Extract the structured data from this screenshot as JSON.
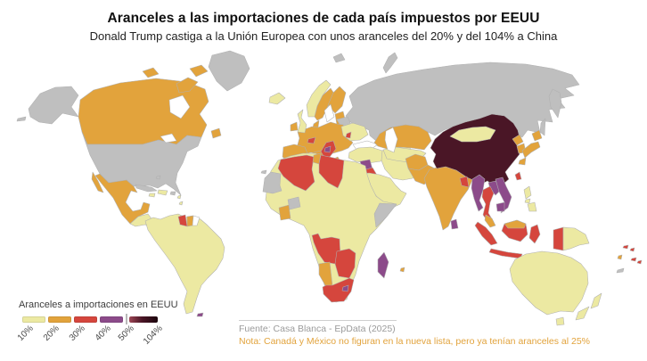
{
  "header": {
    "title": "Aranceles a las importaciones de cada país impuestos por EEUU",
    "subtitle": "Donald Trump castiga a la Unión Europea con unos aranceles del 20% y del 104% a China"
  },
  "chart_data": {
    "type": "choropleth",
    "legend": {
      "title": "Aranceles a importaciones en EEUU",
      "tick_labels": [
        "10%",
        "20%",
        "30%",
        "40%",
        "50%",
        "104%"
      ],
      "bucket_order": [
        "b10",
        "b20",
        "b30",
        "b40"
      ],
      "gradient": [
        "#9d4655",
        "#4a1626",
        "#1c060d"
      ],
      "position": "bottom-left"
    },
    "colors": {
      "b10": "#ece9a2",
      "b20": "#e2a33c",
      "b30": "#d5463d",
      "b40": "#8c4b8a",
      "b104": "#4a1626",
      "nodata": "#bfbfbf",
      "none": "#ffffff",
      "sea": "#ffffff"
    },
    "regions": {
      "russia": "nodata",
      "kamchatka": "nodata",
      "sakhalin": "nodata",
      "svalbard": "nodata",
      "novaya-zemlya": "nodata",
      "greenland": "nodata",
      "alaska": "nodata",
      "aleutians": "nodata",
      "usa": "nodata",
      "belarus": "nodata",
      "somalia": "nodata",
      "western-sahara": "nodata",
      "burkina": "nodata",
      "cuba": "nodata",
      "bahamas": "nodata",
      "puerto-rico": "nodata",
      "new-caledonia": "nodata",
      "canada": "b20",
      "newfoundland": "b20",
      "mexico": "b20",
      "central-america": "b10",
      "hispaniola": "b10",
      "jamaica": "b10",
      "lesser-antilles": "b10",
      "south-america": "b10",
      "guyana": "b30",
      "suriname": "b20",
      "french-guiana": "none",
      "falklands": "b40",
      "iceland": "b10",
      "uk": "b10",
      "ireland": "b20",
      "norway": "b10",
      "sweden": "b20",
      "finland": "b20",
      "baltics": "b20",
      "denmark": "b20",
      "europe-mainland": "b20",
      "iberia": "b20",
      "italy": "b20",
      "switzerland": "b30",
      "balkans": "b30",
      "bosnia": "b40",
      "greece": "b20",
      "ukraine": "b10",
      "moldova": "b30",
      "baltic-sea": "sea",
      "black-sea": "sea",
      "caspian-sea": "sea",
      "hudson-bay": "sea",
      "great-lakes": "sea",
      "turkey": "b10",
      "cyprus": "b10",
      "syria": "b40",
      "iraq": "b30",
      "jordan": "b20",
      "arabia": "b10",
      "iran": "b10",
      "caucasus": "b20",
      "kazakhstan": "b20",
      "central-asia": "b10",
      "afghanistan": "b20",
      "pakistan": "b20",
      "india": "b20",
      "bangladesh": "b30",
      "sri-lanka": "b40",
      "china": "b104",
      "mongolia": "b10",
      "north-korea": "b20",
      "south-korea": "b20",
      "japan": "b20",
      "taiwan": "b30",
      "myanmar": "b40",
      "thailand": "b30",
      "laos": "b40",
      "vietnam": "b40",
      "cambodia": "b40",
      "malaysia": "b20",
      "malaysia-borneo": "b20",
      "indonesia": "b30",
      "papua-new-guinea": "b10",
      "philippines": "b10",
      "africa": "b10",
      "algeria": "b30",
      "tunisia": "b20",
      "libya": "b30",
      "cote-divoire": "b20",
      "angola": "b30",
      "zambia-zimbabwe": "b30",
      "namibia": "b20",
      "south-africa": "b30",
      "lesotho": "b40",
      "madagascar": "b40",
      "mauritius": "b20",
      "canary": "nodata",
      "australia": "b10",
      "tasmania": "b10",
      "new-zealand": "b10",
      "fiji": "b30",
      "vanuatu": "b20",
      "solomon": "b30"
    }
  },
  "footer": {
    "source": "Fuente: Casa Blanca - EpData (2025)",
    "note": "Nota: Canadá y México no figuran en la nueva lista, pero ya tenían aranceles al 25%",
    "note_color": "#e2a33c"
  }
}
